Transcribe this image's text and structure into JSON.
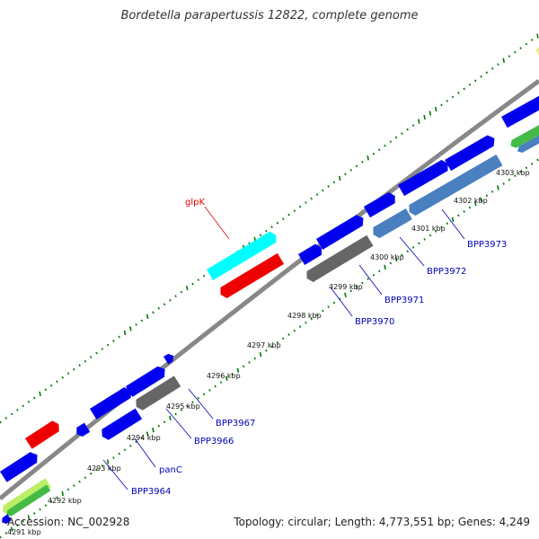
{
  "header": {
    "title": "Bordetella parapertussis 12822, complete genome"
  },
  "footer": {
    "accession": "Accession: NC_002928",
    "summary": "Topology: circular; Length: 4,773,551 bp; Genes: 4,249"
  },
  "colors": {
    "cds": "#0000ee",
    "rna": "#ff0000",
    "special": "#00ffff",
    "gray": "#666666",
    "steel": "#4a7fc0",
    "green": "#44bb44",
    "lightgreen": "#bbee66",
    "yellow": "#eeee88",
    "gene_label": "#0000bb",
    "highlight_label": "#dd0000",
    "gc_tick": "#007700"
  },
  "ruler": [
    {
      "label": "4291 kbp"
    },
    {
      "label": "4292 kbp"
    },
    {
      "label": "4293 kbp"
    },
    {
      "label": "4294 kbp"
    },
    {
      "label": "4295 kbp"
    },
    {
      "label": "4296 kbp"
    },
    {
      "label": "4297 kbp"
    },
    {
      "label": "4298 kbp"
    },
    {
      "label": "4299 kbp"
    },
    {
      "label": "4300 kbp"
    },
    {
      "label": "4301 kbp"
    },
    {
      "label": "4302 kbp"
    },
    {
      "label": "4303 kbp"
    }
  ],
  "genes": [
    {
      "name": "BPP3964"
    },
    {
      "name": "panC"
    },
    {
      "name": "BPP3966"
    },
    {
      "name": "BPP3967"
    },
    {
      "name": "BPP3970"
    },
    {
      "name": "BPP3971"
    },
    {
      "name": "BPP3972"
    },
    {
      "name": "BPP3973"
    },
    {
      "name": "glpK"
    }
  ]
}
